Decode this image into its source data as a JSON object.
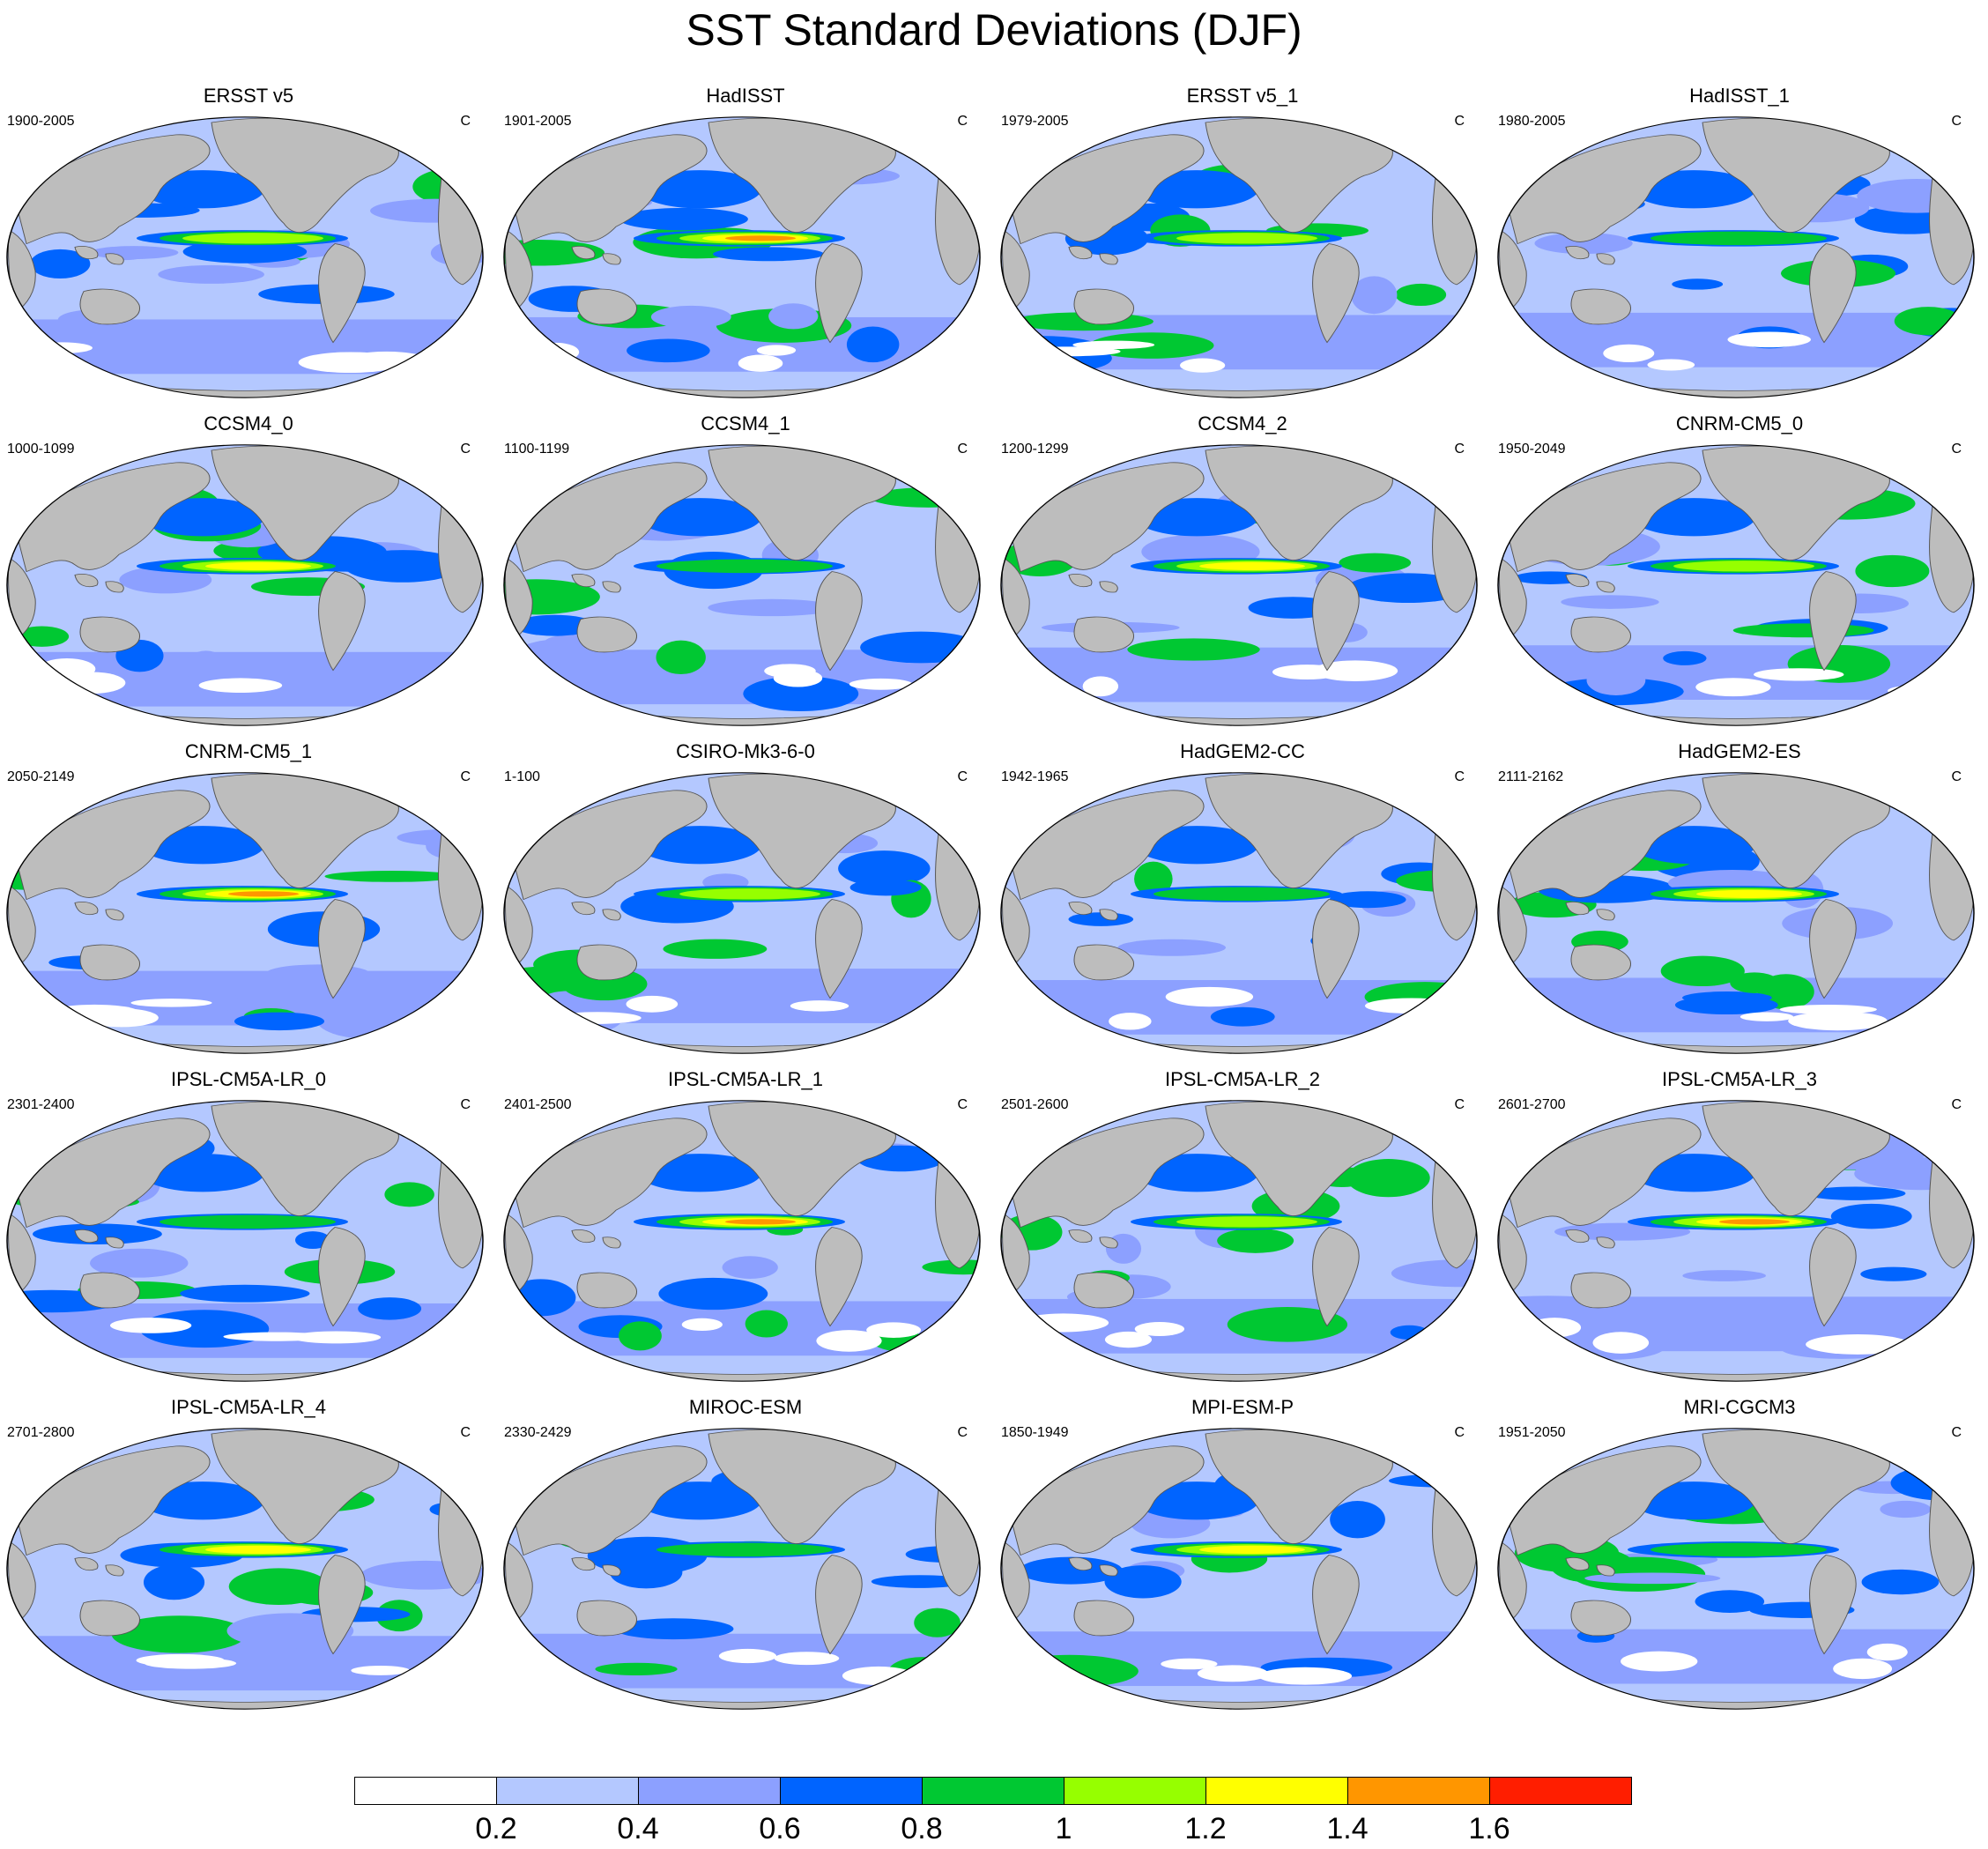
{
  "title": "SST Standard Deviations (DJF)",
  "unit": "C",
  "panels": [
    {
      "name": "ERSST v5",
      "years": "1900-2005"
    },
    {
      "name": "HadISST",
      "years": "1901-2005"
    },
    {
      "name": "ERSST v5_1",
      "years": "1979-2005"
    },
    {
      "name": "HadISST_1",
      "years": "1980-2005"
    },
    {
      "name": "CCSM4_0",
      "years": "1000-1099"
    },
    {
      "name": "CCSM4_1",
      "years": "1100-1199"
    },
    {
      "name": "CCSM4_2",
      "years": "1200-1299"
    },
    {
      "name": "CNRM-CM5_0",
      "years": "1950-2049"
    },
    {
      "name": "CNRM-CM5_1",
      "years": "2050-2149"
    },
    {
      "name": "CSIRO-Mk3-6-0",
      "years": "1-100"
    },
    {
      "name": "HadGEM2-CC",
      "years": "1942-1965"
    },
    {
      "name": "HadGEM2-ES",
      "years": "2111-2162"
    },
    {
      "name": "IPSL-CM5A-LR_0",
      "years": "2301-2400"
    },
    {
      "name": "IPSL-CM5A-LR_1",
      "years": "2401-2500"
    },
    {
      "name": "IPSL-CM5A-LR_2",
      "years": "2501-2600"
    },
    {
      "name": "IPSL-CM5A-LR_3",
      "years": "2601-2700"
    },
    {
      "name": "IPSL-CM5A-LR_4",
      "years": "2701-2800"
    },
    {
      "name": "MIROC-ESM",
      "years": "2330-2429"
    },
    {
      "name": "MPI-ESM-P",
      "years": "1850-1949"
    },
    {
      "name": "MRI-CGCM3",
      "years": "1951-2050"
    }
  ],
  "colorbar": {
    "colors": [
      "#ffffff",
      "#b4c8ff",
      "#8ca0ff",
      "#0064ff",
      "#00c832",
      "#96ff00",
      "#ffff00",
      "#ff9600",
      "#ff1e00"
    ],
    "labels": [
      "0.2",
      "0.4",
      "0.6",
      "0.8",
      "1",
      "1.2",
      "1.4",
      "1.6"
    ]
  },
  "colors": {
    "land": "#bdbdbd",
    "ocean_base": "#b4c8ff",
    "outline": "#000000"
  }
}
